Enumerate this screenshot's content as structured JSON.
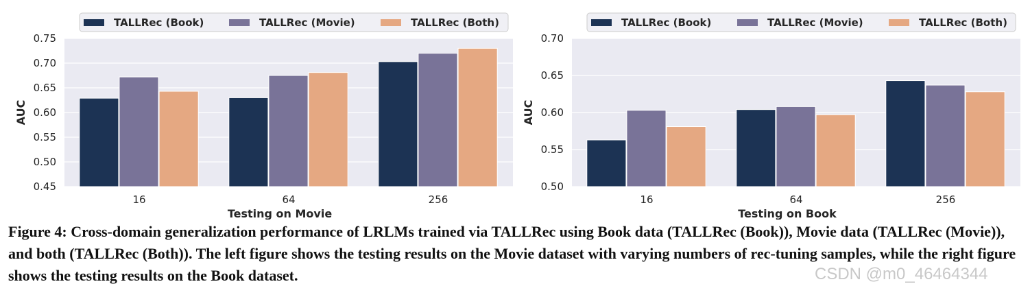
{
  "colors": {
    "book": "#1c3354",
    "movie": "#797398",
    "both": "#e5a882",
    "plot_bg": "#eaeaf2",
    "grid": "#ffffff"
  },
  "chart_data": [
    {
      "type": "bar",
      "categories": [
        "16",
        "64",
        "256"
      ],
      "series": [
        {
          "name": "TALLRec (Book)",
          "values": [
            0.629,
            0.63,
            0.703
          ]
        },
        {
          "name": "TALLRec (Movie)",
          "values": [
            0.672,
            0.675,
            0.72
          ]
        },
        {
          "name": "TALLRec (Both)",
          "values": [
            0.643,
            0.681,
            0.73
          ]
        }
      ],
      "xlabel": "Testing on Movie",
      "ylabel": "AUC",
      "ylim": [
        0.45,
        0.75
      ],
      "yticks": [
        "0.45",
        "0.50",
        "0.55",
        "0.60",
        "0.65",
        "0.70",
        "0.75"
      ],
      "grid": true,
      "legend": "top"
    },
    {
      "type": "bar",
      "categories": [
        "16",
        "64",
        "256"
      ],
      "series": [
        {
          "name": "TALLRec (Book)",
          "values": [
            0.563,
            0.604,
            0.643
          ]
        },
        {
          "name": "TALLRec (Movie)",
          "values": [
            0.603,
            0.608,
            0.637
          ]
        },
        {
          "name": "TALLRec (Both)",
          "values": [
            0.581,
            0.597,
            0.628
          ]
        }
      ],
      "xlabel": "Testing on Book",
      "ylabel": "AUC",
      "ylim": [
        0.5,
        0.7
      ],
      "yticks": [
        "0.50",
        "0.55",
        "0.60",
        "0.65",
        "0.70"
      ],
      "grid": true,
      "legend": "top"
    }
  ],
  "caption": "Figure 4: Cross-domain generalization performance of LRLMs trained via TALLRec using Book data (TALLRec (Book)), Movie data (TALLRec (Movie)), and both (TALLRec (Both)). The left figure shows the testing results on the Movie dataset with varying numbers of rec-tuning samples, while the right figure shows the testing results on the Book dataset.",
  "watermark": "CSDN @m0_46464344"
}
